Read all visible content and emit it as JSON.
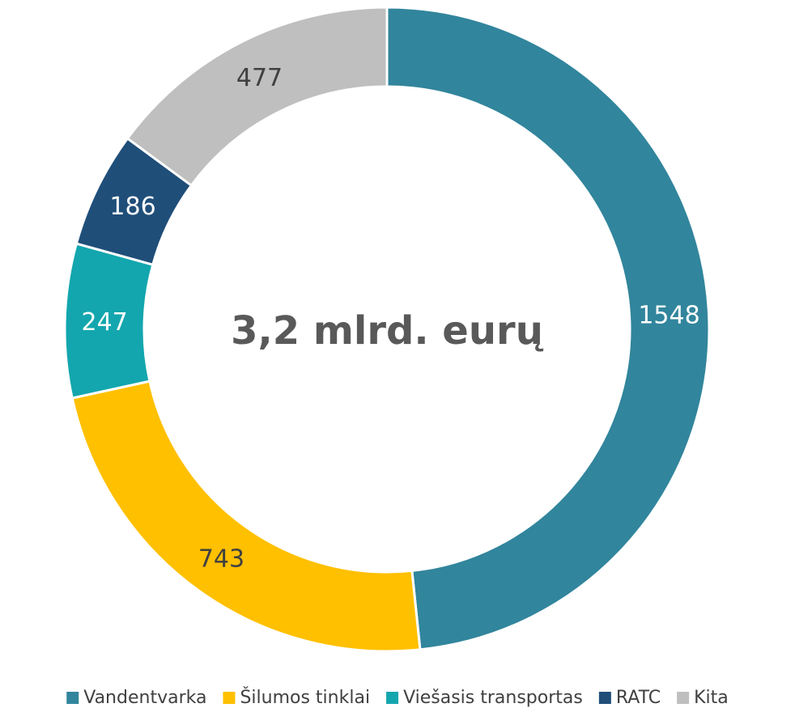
{
  "chart_data": {
    "type": "donut",
    "annotation": "3,2 mlrd. eurų",
    "categories": [
      "Vandentvarka",
      "Šilumos tinklai",
      "Viešasis transportas",
      "RATC",
      "Kita"
    ],
    "values": [
      1548,
      743,
      247,
      186,
      477
    ],
    "colors": [
      "#31859c",
      "#ffc000",
      "#13a6ae",
      "#1f4e79",
      "#bfbfbf"
    ],
    "legend": "bottom"
  }
}
